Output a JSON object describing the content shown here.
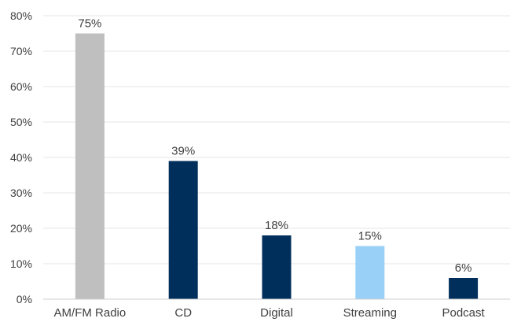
{
  "chart_data": {
    "type": "bar",
    "categories": [
      "AM/FM Radio",
      "CD",
      "Digital",
      "Streaming",
      "Podcast"
    ],
    "values": [
      75,
      39,
      18,
      15,
      6
    ],
    "data_labels": [
      "75%",
      "39%",
      "18%",
      "15%",
      "6%"
    ],
    "colors": [
      "#bfbfbf",
      "#002f5c",
      "#002f5c",
      "#99d0f7",
      "#002f5c"
    ],
    "ylim": [
      0,
      80
    ],
    "y_ticks": [
      0,
      10,
      20,
      30,
      40,
      50,
      60,
      70,
      80
    ],
    "y_tick_labels": [
      "0%",
      "10%",
      "20%",
      "30%",
      "40%",
      "50%",
      "60%",
      "70%",
      "80%"
    ],
    "grid": true,
    "legend": "none"
  }
}
